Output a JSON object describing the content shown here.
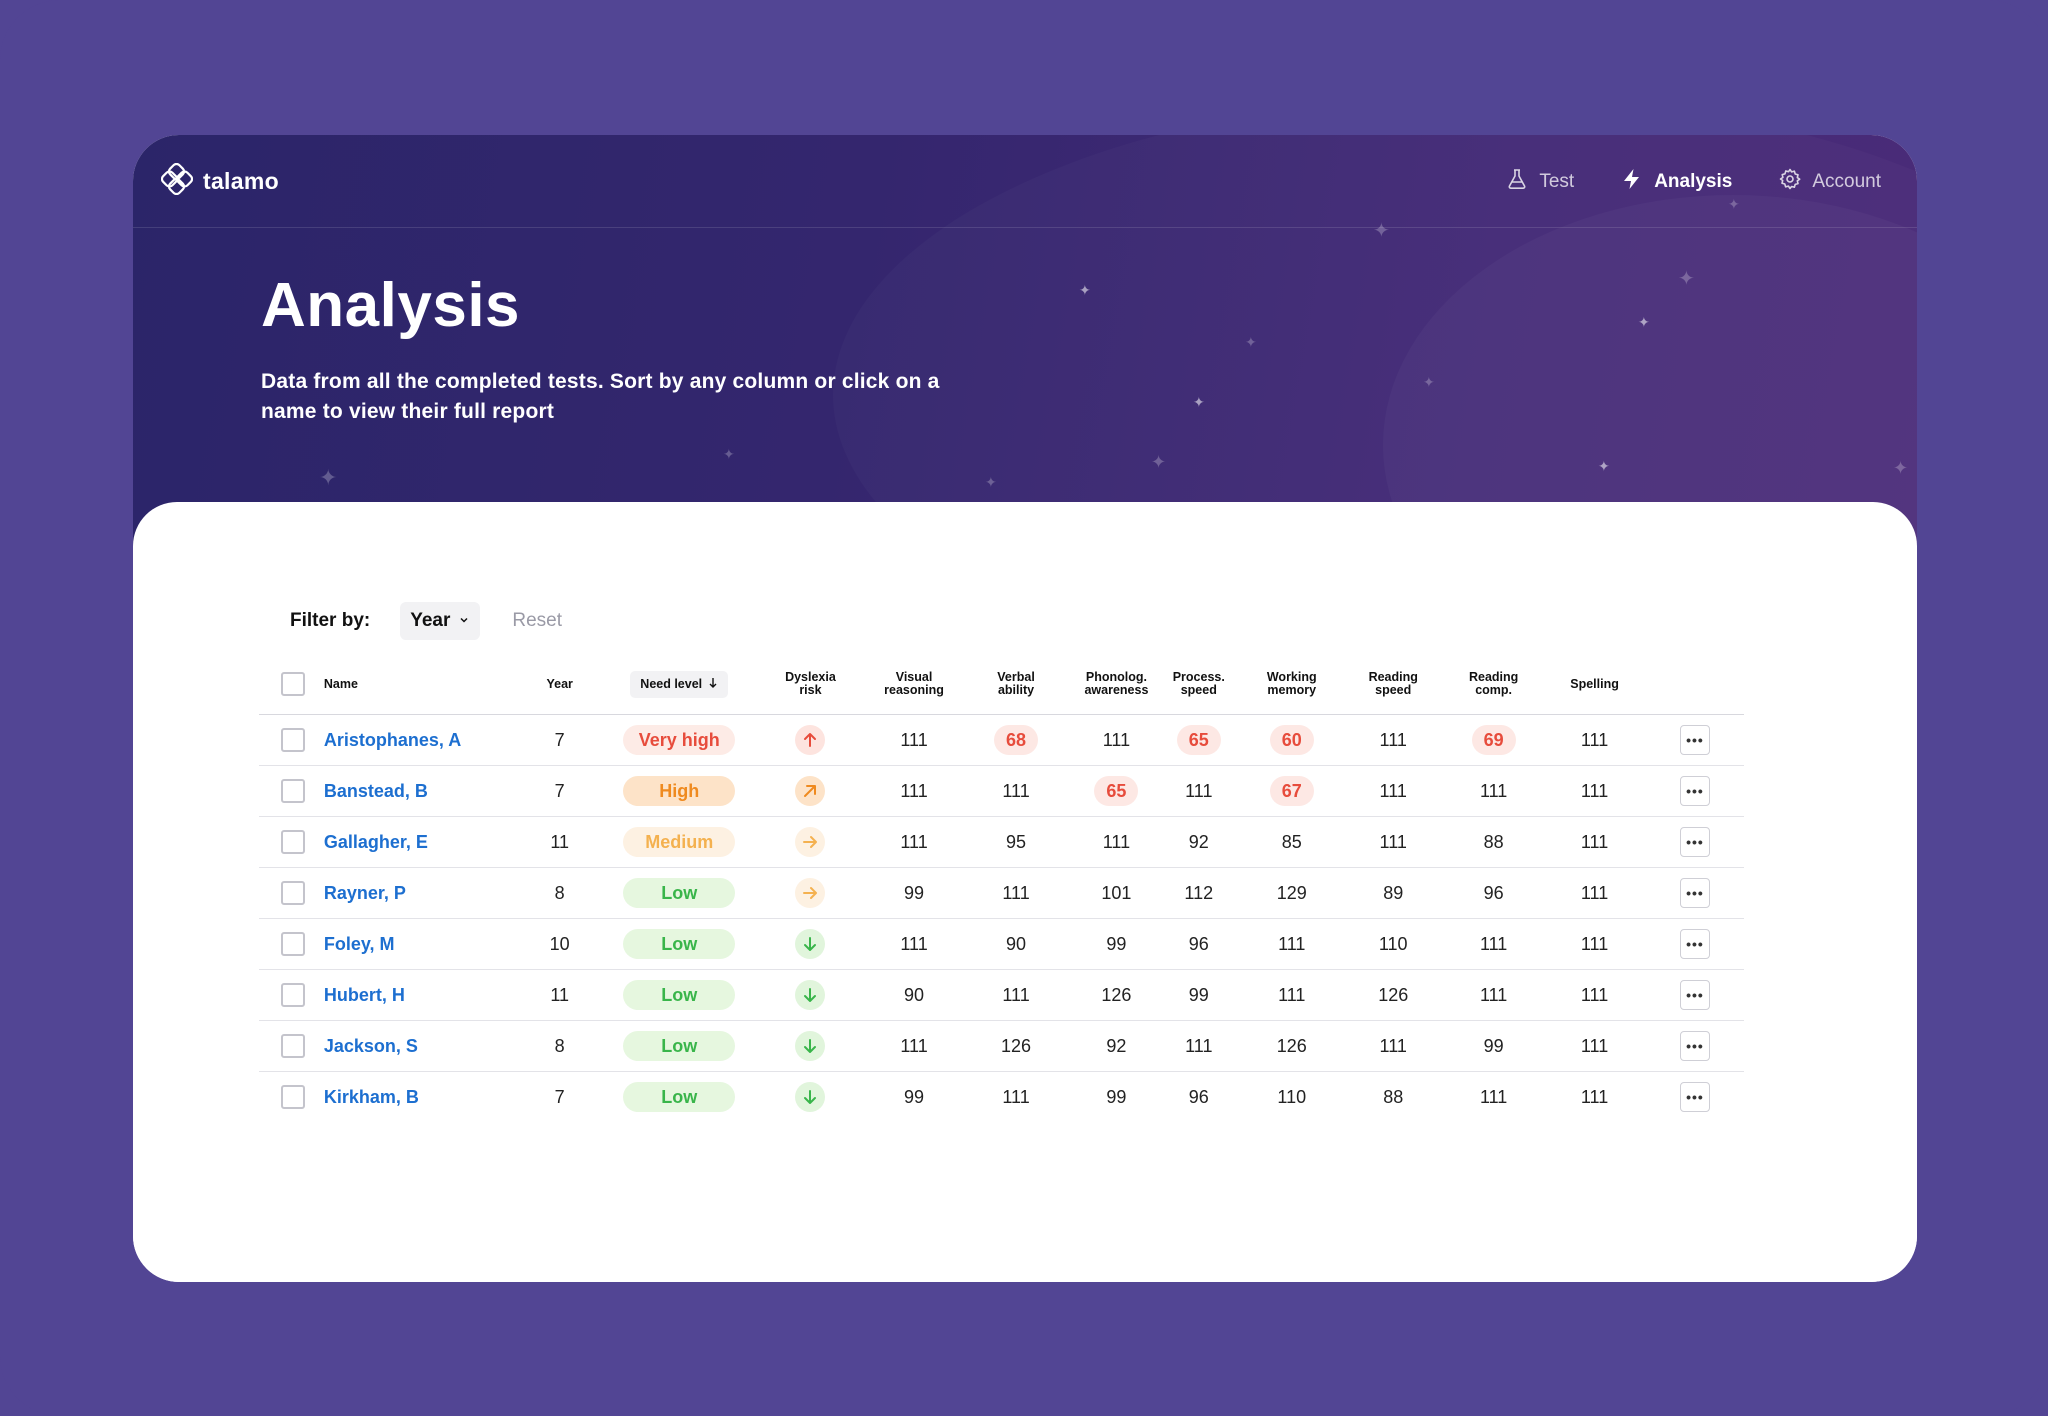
{
  "brand": {
    "name": "talamo"
  },
  "nav": {
    "items": [
      {
        "label": "Test",
        "icon": "flask-icon",
        "active": false
      },
      {
        "label": "Analysis",
        "icon": "lightning-icon",
        "active": true
      },
      {
        "label": "Account",
        "icon": "gear-icon",
        "active": false
      }
    ]
  },
  "page": {
    "title": "Analysis",
    "subtitle": "Data from all the completed tests. Sort by any column or click on a name to view their full report"
  },
  "filter": {
    "label": "Filter by:",
    "selected": "Year",
    "reset_label": "Reset"
  },
  "table": {
    "columns": {
      "name": "Name",
      "year": "Year",
      "need": "Need level",
      "dyslexia_1": "Dyslexia",
      "dyslexia_2": "risk",
      "visual_1": "Visual",
      "visual_2": "reasoning",
      "verbal_1": "Verbal",
      "verbal_2": "ability",
      "phon_1": "Phonolog.",
      "phon_2": "awareness",
      "proc_1": "Process.",
      "proc_2": "speed",
      "work_1": "Working",
      "work_2": "memory",
      "rspeed_1": "Reading",
      "rspeed_2": "speed",
      "rcomp_1": "Reading",
      "rcomp_2": "comp.",
      "spelling": "Spelling"
    },
    "rows": [
      {
        "name": "Aristophanes, A",
        "year": "7",
        "need": "Very high",
        "need_class": "veryhigh",
        "risk": "up",
        "scores": [
          "111",
          "68",
          "111",
          "65",
          "60",
          "111",
          "69",
          "111"
        ],
        "flags": [
          false,
          true,
          false,
          true,
          true,
          false,
          true,
          false
        ]
      },
      {
        "name": "Banstead, B",
        "year": "7",
        "need": "High",
        "need_class": "high",
        "risk": "diag",
        "scores": [
          "111",
          "111",
          "65",
          "111",
          "67",
          "111",
          "111",
          "111"
        ],
        "flags": [
          false,
          false,
          true,
          false,
          true,
          false,
          false,
          false
        ]
      },
      {
        "name": "Gallagher, E",
        "year": "11",
        "need": "Medium",
        "need_class": "medium",
        "risk": "right",
        "scores": [
          "111",
          "95",
          "111",
          "92",
          "85",
          "111",
          "88",
          "111"
        ],
        "flags": [
          false,
          false,
          false,
          false,
          false,
          false,
          false,
          false
        ]
      },
      {
        "name": "Rayner, P",
        "year": "8",
        "need": "Low",
        "need_class": "low",
        "risk": "right",
        "scores": [
          "99",
          "111",
          "101",
          "112",
          "129",
          "89",
          "96",
          "111"
        ],
        "flags": [
          false,
          false,
          false,
          false,
          false,
          false,
          false,
          false
        ]
      },
      {
        "name": "Foley, M",
        "year": "10",
        "need": "Low",
        "need_class": "low",
        "risk": "down",
        "scores": [
          "111",
          "90",
          "99",
          "96",
          "111",
          "110",
          "111",
          "111"
        ],
        "flags": [
          false,
          false,
          false,
          false,
          false,
          false,
          false,
          false
        ]
      },
      {
        "name": "Hubert, H",
        "year": "11",
        "need": "Low",
        "need_class": "low",
        "risk": "down",
        "scores": [
          "90",
          "111",
          "126",
          "99",
          "111",
          "126",
          "111",
          "111"
        ],
        "flags": [
          false,
          false,
          false,
          false,
          false,
          false,
          false,
          false
        ]
      },
      {
        "name": "Jackson, S",
        "year": "8",
        "need": "Low",
        "need_class": "low",
        "risk": "down",
        "scores": [
          "111",
          "126",
          "92",
          "111",
          "126",
          "111",
          "99",
          "111"
        ],
        "flags": [
          false,
          false,
          false,
          false,
          false,
          false,
          false,
          false
        ]
      },
      {
        "name": "Kirkham, B",
        "year": "7",
        "need": "Low",
        "need_class": "low",
        "risk": "down",
        "scores": [
          "99",
          "111",
          "99",
          "96",
          "110",
          "88",
          "111",
          "111"
        ],
        "flags": [
          false,
          false,
          false,
          false,
          false,
          false,
          false,
          false
        ]
      }
    ]
  },
  "colors": {
    "background": "#524594",
    "hero_start": "#2b2569",
    "hero_end": "#4a2b78",
    "link": "#1d6fd0",
    "very_high": "#e74c3c",
    "high": "#ef8a1f",
    "medium": "#f4b14f",
    "low": "#39b54a"
  }
}
